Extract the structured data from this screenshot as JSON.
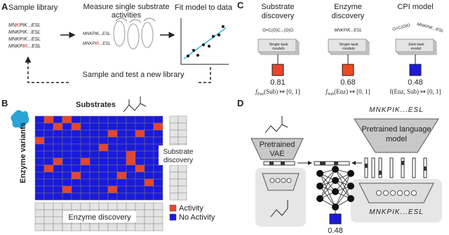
{
  "panel_a": {
    "label": "A",
    "sample_library": "Sample library",
    "library": [
      [
        {
          "text": "MN"
        },
        {
          "text": "K",
          "color": "#e03030"
        },
        {
          "text": "PIK...ESL"
        }
      ],
      [
        {
          "text": "MNKPIK...ESL"
        }
      ],
      [
        {
          "text": "MNKP"
        },
        {
          "text": "I",
          "color": "#e03030"
        },
        {
          "text": "K...ESL"
        }
      ],
      [
        {
          "text": "MNKPI"
        },
        {
          "text": "R",
          "color": "#e03030"
        },
        {
          "text": "...ESL"
        }
      ]
    ],
    "measure": [
      "Measure single substrate",
      "activities"
    ],
    "measure_sequences": [
      [
        {
          "text": "MNKPIK...ESL"
        }
      ],
      [
        {
          "text": "MNKPI"
        },
        {
          "text": "R",
          "color": "#e03030"
        },
        {
          "text": "...ESL"
        }
      ]
    ],
    "fit": "Fit model to data",
    "loop": "Sample and test a new library"
  },
  "panel_b": {
    "label": "B",
    "substrates": "Substrates",
    "enzymes": "Enzyme variants",
    "substrate_discovery": [
      "Substrate",
      "discovery"
    ],
    "enzyme_discovery": "Enzyme discovery",
    "legend": [
      {
        "name": "Activity",
        "color": "#e8452c"
      },
      {
        "name": "No Activity",
        "color": "#1a1adb"
      }
    ],
    "activity": [
      [
        0,
        1,
        0,
        1,
        0,
        0,
        0,
        0,
        0,
        0,
        0,
        0,
        0,
        0
      ],
      [
        0,
        0,
        1,
        0,
        1,
        0,
        0,
        0,
        0,
        0,
        0,
        0,
        0,
        1
      ],
      [
        0,
        0,
        0,
        0,
        0,
        0,
        0,
        0,
        1,
        0,
        0,
        1,
        0,
        0
      ],
      [
        1,
        0,
        0,
        0,
        0,
        0,
        0,
        0,
        0,
        0,
        0,
        0,
        0,
        0
      ],
      [
        0,
        0,
        0,
        0,
        0,
        0,
        0,
        1,
        0,
        0,
        0,
        0,
        0,
        0
      ],
      [
        0,
        0,
        0,
        0,
        0,
        0,
        0,
        0,
        0,
        0,
        1,
        0,
        0,
        0
      ],
      [
        0,
        0,
        1,
        0,
        0,
        1,
        0,
        0,
        0,
        0,
        1,
        0,
        0,
        0
      ],
      [
        0,
        1,
        0,
        0,
        0,
        0,
        0,
        0,
        0,
        0,
        0,
        1,
        0,
        0
      ],
      [
        0,
        0,
        0,
        0,
        1,
        0,
        0,
        0,
        0,
        1,
        0,
        0,
        0,
        0
      ],
      [
        0,
        0,
        0,
        0,
        0,
        0,
        0,
        0,
        0,
        0,
        0,
        0,
        1,
        0
      ],
      [
        0,
        0,
        0,
        1,
        0,
        0,
        0,
        0,
        1,
        0,
        0,
        0,
        0,
        0
      ],
      [
        0,
        0,
        0,
        0,
        0,
        0,
        0,
        0,
        0,
        0,
        0,
        0,
        0,
        0
      ]
    ]
  },
  "panel_c": {
    "label": "C",
    "models": [
      {
        "title": [
          "Substrate",
          "discovery"
        ],
        "inputs": [
          "O=C(O)C...(O)O"
        ],
        "box": [
          "Single-task",
          "models"
        ],
        "value": 0.81,
        "color": "#e8452c",
        "formula": {
          "f": "f",
          "sub": "Enz",
          "rest": "(Sub) ↦ [0, 1]"
        }
      },
      {
        "title": [
          "Enzyme",
          "discovery"
        ],
        "inputs": [
          "MNKPIK...ESL"
        ],
        "box": [
          "Single-task",
          "models"
        ],
        "value": 0.68,
        "color": "#ee4a22",
        "formula": {
          "f": "f",
          "sub": "Sub",
          "rest": "(Enz) ↦ [0, 1]"
        }
      },
      {
        "title": [
          "CPI model"
        ],
        "inputs": [
          "O=C(O)O",
          "MNKPIK...ESL"
        ],
        "box": [
          "Joint-task",
          "model"
        ],
        "value": 0.48,
        "color": "#1a1adb",
        "formula": {
          "f": "f(Enz, Sub) ↦ [0, 1]"
        }
      }
    ]
  },
  "panel_d": {
    "label": "D",
    "sequence_top": "MNKPIK...ESL",
    "language_model": [
      "Pretrained language",
      "model"
    ],
    "vae": [
      "Pretrained",
      "VAE"
    ],
    "sequence_bottom": "MNKPIK...ESL",
    "value": 0.48,
    "color": "#1a1adb"
  }
}
